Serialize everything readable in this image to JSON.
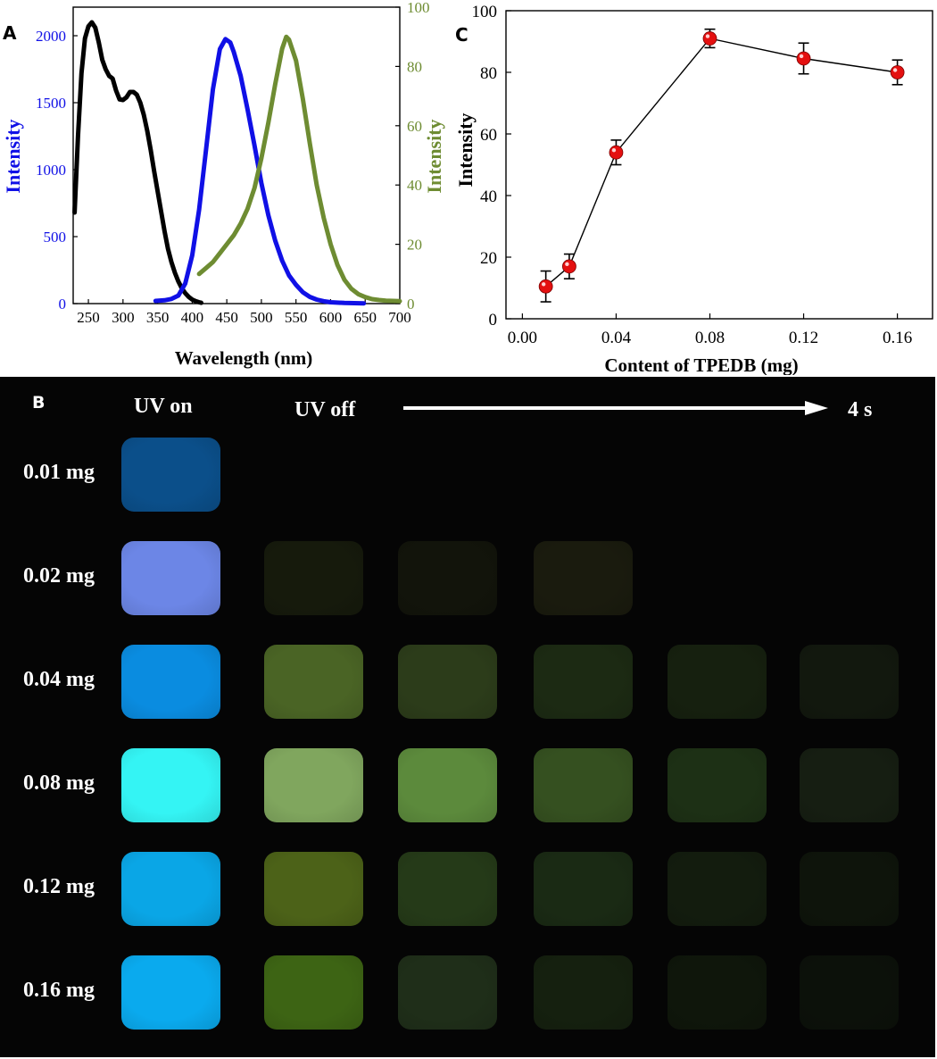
{
  "panels": {
    "a_label": "A",
    "b_label": "B",
    "c_label": "C"
  },
  "chart_data": [
    {
      "id": "A",
      "type": "line",
      "xlabel": "Wavelength (nm)",
      "ylabel_left": "Intensity",
      "ylabel_right": "Intensity",
      "xlim": [
        228,
        700
      ],
      "ylim_left": [
        0,
        2200
      ],
      "ylim_right": [
        0,
        100
      ],
      "x_ticks": [
        "250",
        "300",
        "350",
        "400",
        "450",
        "500",
        "550",
        "600",
        "650",
        "700"
      ],
      "y_left_ticks": [
        "0",
        "500",
        "1000",
        "1500",
        "2000"
      ],
      "y_right_ticks": [
        "0",
        "20",
        "40",
        "60",
        "80",
        "100"
      ],
      "colors": {
        "absorption": "#000000",
        "emission_blue": "#1010e6",
        "emission_green": "#6e8c32",
        "axis_left": "#1010e6",
        "axis_right": "#6e8c32"
      },
      "series": [
        {
          "name": "absorption",
          "axis": "left",
          "x": [
            230,
            235,
            240,
            245,
            250,
            255,
            260,
            265,
            270,
            275,
            280,
            285,
            290,
            295,
            300,
            305,
            310,
            315,
            320,
            325,
            330,
            335,
            340,
            345,
            350,
            355,
            360,
            365,
            370,
            375,
            380,
            385,
            390,
            395,
            400,
            405,
            410,
            413
          ],
          "y": [
            680,
            1250,
            1720,
            1980,
            2070,
            2100,
            2060,
            1950,
            1820,
            1750,
            1700,
            1680,
            1590,
            1525,
            1520,
            1540,
            1580,
            1580,
            1560,
            1500,
            1410,
            1290,
            1150,
            990,
            840,
            690,
            540,
            410,
            310,
            230,
            165,
            115,
            78,
            50,
            30,
            18,
            10,
            6
          ]
        },
        {
          "name": "emission_blue",
          "axis": "left",
          "x": [
            347,
            360,
            370,
            380,
            390,
            400,
            410,
            420,
            430,
            440,
            448,
            455,
            460,
            470,
            480,
            490,
            500,
            510,
            520,
            530,
            540,
            550,
            560,
            570,
            580,
            590,
            600,
            620,
            648
          ],
          "y": [
            20,
            25,
            35,
            60,
            150,
            360,
            700,
            1150,
            1600,
            1900,
            1975,
            1950,
            1880,
            1700,
            1450,
            1180,
            900,
            660,
            470,
            320,
            210,
            140,
            85,
            50,
            30,
            18,
            10,
            5,
            2
          ]
        },
        {
          "name": "emission_green",
          "axis": "right",
          "x": [
            410,
            420,
            430,
            440,
            450,
            460,
            470,
            480,
            490,
            500,
            510,
            520,
            530,
            536,
            540,
            550,
            560,
            570,
            580,
            590,
            600,
            610,
            620,
            630,
            640,
            650,
            660,
            670,
            680,
            700
          ],
          "y": [
            10,
            12,
            14,
            17,
            20,
            23,
            27,
            32,
            39,
            49,
            61,
            74,
            86,
            90,
            89,
            82,
            69,
            54,
            40,
            29,
            20,
            13,
            8,
            5,
            3.2,
            2.2,
            1.5,
            1.2,
            1.0,
            0.8
          ]
        }
      ]
    },
    {
      "id": "C",
      "type": "line",
      "xlabel": "Content of TPEDB (mg)",
      "ylabel": "Intensity",
      "xlim": [
        -0.007,
        0.175
      ],
      "ylim": [
        0,
        100
      ],
      "x_ticks": [
        "0.00",
        "0.04",
        "0.08",
        "0.12",
        "0.16"
      ],
      "y_ticks": [
        "0",
        "20",
        "40",
        "60",
        "80",
        "100"
      ],
      "marker_color": "#e41010",
      "line_color": "#000000",
      "x": [
        0.01,
        0.02,
        0.04,
        0.08,
        0.12,
        0.16
      ],
      "y": [
        10.5,
        17,
        54,
        91,
        84.5,
        80
      ],
      "err": [
        5,
        4,
        4,
        3,
        5,
        4
      ]
    }
  ],
  "panel_b": {
    "uv_on": "UV on",
    "uv_off": "UV off",
    "time_end": "4 s",
    "rows": [
      {
        "label": "0.01 mg",
        "tiles": [
          "#0b4f8a",
          "",
          "",
          "",
          "",
          ""
        ]
      },
      {
        "label": "0.02 mg",
        "tiles": [
          "#6c86e6",
          "#161a0c",
          "#12140b",
          "#1a1b0e",
          "",
          ""
        ]
      },
      {
        "label": "0.04 mg",
        "tiles": [
          "#0a8ce0",
          "#4a6425",
          "#2c3c1a",
          "#1c2a13",
          "#16200f",
          "#12180e"
        ]
      },
      {
        "label": "0.08 mg",
        "tiles": [
          "#34f4f4",
          "#80a65e",
          "#5c8a3c",
          "#355020",
          "#1d3015",
          "#161e12"
        ]
      },
      {
        "label": "0.12 mg",
        "tiles": [
          "#0aa6e6",
          "#4c6218",
          "#253a18",
          "#1a2a14",
          "#131c0e",
          "#0e140b"
        ]
      },
      {
        "label": "0.16 mg",
        "tiles": [
          "#0aaaee",
          "#3d6414",
          "#1f2e19",
          "#15200f",
          "#0f160b",
          "#0c110a"
        ]
      }
    ]
  }
}
